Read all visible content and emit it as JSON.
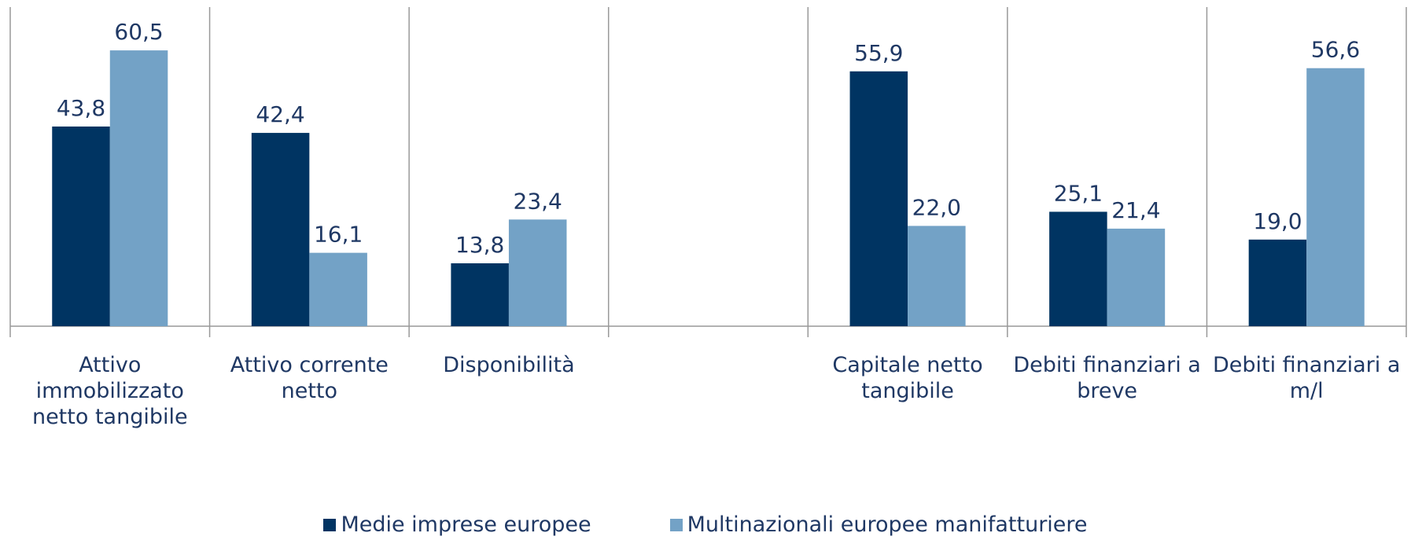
{
  "chart_data": {
    "type": "bar",
    "categories": [
      "Attivo immobilizzato netto tangibile",
      "Attivo corrente netto",
      "Disponibilità",
      null,
      "Capitale netto tangibile",
      "Debiti finanziari a breve",
      "Debiti finanziari a m/l"
    ],
    "series": [
      {
        "name": "Medie imprese europee",
        "color": "#003462",
        "values": [
          43.8,
          42.4,
          13.8,
          null,
          55.9,
          25.1,
          19.0
        ],
        "value_labels": [
          "43,8",
          "42,4",
          "13,8",
          null,
          "55,9",
          "25,1",
          "19,0"
        ]
      },
      {
        "name": "Multinazionali europee manifatturiere",
        "color": "#73a2c6",
        "values": [
          60.5,
          16.1,
          23.4,
          null,
          22.0,
          21.4,
          56.6
        ],
        "value_labels": [
          "60,5",
          "16,1",
          "23,4",
          null,
          "22,0",
          "21,4",
          "56,6"
        ]
      }
    ],
    "ylim": [
      0,
      70
    ]
  }
}
